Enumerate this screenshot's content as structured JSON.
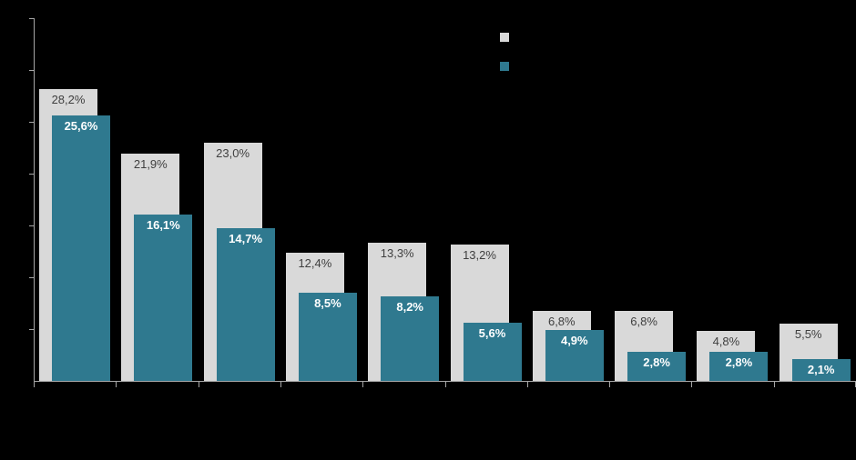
{
  "chart_data": {
    "type": "bar",
    "title": "",
    "categories": [
      "",
      "",
      "",
      "",
      "",
      "",
      "",
      "",
      "",
      ""
    ],
    "category_labels_visible": false,
    "series": [
      {
        "name": "",
        "color": "#d9d9d9",
        "label_color": "#3f3f3f",
        "values": [
          28.2,
          21.9,
          23.0,
          12.4,
          13.3,
          13.2,
          6.8,
          6.8,
          4.8,
          5.5
        ],
        "data_labels": [
          "28,2%",
          "21,9%",
          "23,0%",
          "12,4%",
          "13,3%",
          "13,2%",
          "6,8%",
          "6,8%",
          "4,8%",
          "5,5%"
        ]
      },
      {
        "name": "",
        "color": "#2f798f",
        "label_color": "#ffffff",
        "values": [
          25.6,
          16.1,
          14.7,
          8.5,
          8.2,
          5.6,
          4.9,
          2.8,
          2.8,
          2.1
        ],
        "data_labels": [
          "25,6%",
          "16,1%",
          "14,7%",
          "8,5%",
          "8,2%",
          "5,6%",
          "4,9%",
          "2,8%",
          "2,8%",
          "2,1%"
        ]
      }
    ],
    "xlabel": "",
    "ylabel": "",
    "ylim": [
      0,
      35
    ],
    "y_tick_step": 5,
    "y_tick_labels_visible": false,
    "grid": false,
    "legend_position": "top-center",
    "background_color": "#000000",
    "axis_color": "#a6a6a6"
  }
}
